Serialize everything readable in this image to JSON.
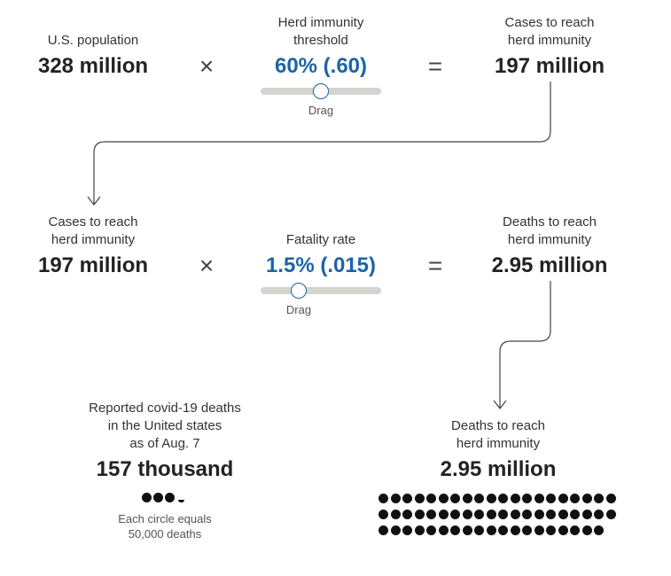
{
  "row1": {
    "population_label": "U.S. population",
    "population_value": "328 million",
    "multiply": "×",
    "threshold_label": "Herd immunity\nthreshold",
    "threshold_value": "60% (.60)",
    "threshold_slider_value": 0.6,
    "drag_hint": "Drag",
    "equals": "=",
    "cases_label": "Cases to reach\nherd immunity",
    "cases_value": "197 million"
  },
  "row2": {
    "cases_label": "Cases to reach\nherd immunity",
    "cases_value": "197 million",
    "multiply": "×",
    "fatality_label": "Fatality rate",
    "fatality_value": "1.5% (.015)",
    "fatality_slider_value": 0.015,
    "drag_hint": "Drag",
    "equals": "=",
    "deaths_label": "Deaths to reach\nherd immunity",
    "deaths_value": "2.95 million"
  },
  "row3": {
    "reported_label": "Reported covid-19 deaths\nin the United states\nas of Aug. 7",
    "reported_value": "157 thousand",
    "reported_circles": 3.14,
    "circle_note": "Each circle equals\n50,000 deaths",
    "herd_deaths_label": "Deaths to reach\nherd immunity",
    "herd_deaths_value": "2.95 million",
    "herd_circles": 59
  },
  "colors": {
    "accent": "#1c64a7",
    "text": "#222222",
    "track": "#d4d4d0",
    "dot": "#111111"
  }
}
